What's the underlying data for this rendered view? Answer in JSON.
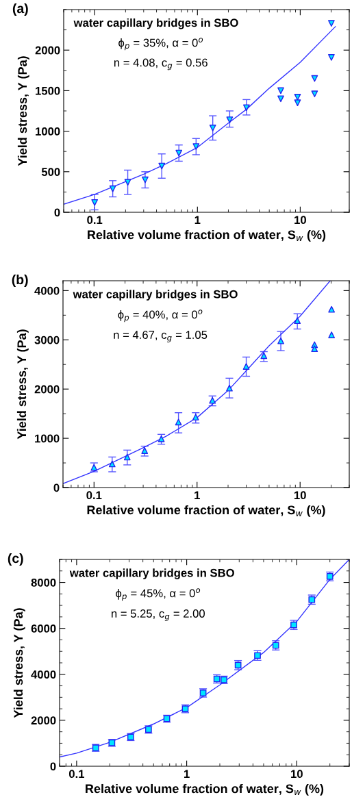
{
  "chart_data": [
    {
      "type": "scatter",
      "title": "(a)",
      "xlabel": "Relative volume fraction of water, S$_{w}$ (%)",
      "ylabel": "Yield stress, Y (Pa)",
      "annotations": [
        "water capillary bridges in SBO",
        "ϕ$_{p}$ = 35%, α = 0$^{o}$",
        "n = 4.08, c$_{g}$ = 0.56"
      ],
      "log": "x",
      "xlim": [
        0.05,
        30
      ],
      "xticks": [
        0.1,
        1,
        10
      ],
      "ylim": [
        0,
        2500
      ],
      "yticks": [
        0,
        500,
        1000,
        1500,
        2000
      ],
      "grid": false,
      "series": [
        {
          "marker": "triangle_down",
          "color": "#00e5ff",
          "x": [
            0.1,
            0.15,
            0.21,
            0.31,
            0.45,
            0.66,
            0.97,
            1.41,
            2.06,
            3.0,
            6.47,
            6.47,
            9.42,
            9.42,
            13.8,
            13.8,
            20.1,
            20.1
          ],
          "values": [
            120,
            290,
            370,
            400,
            570,
            730,
            810,
            1040,
            1140,
            1290,
            1500,
            1400,
            1420,
            1350,
            1650,
            1460,
            2330,
            1910
          ],
          "errors": [
            [
              30,
              220
            ],
            [
              190,
              390
            ],
            [
              220,
              520
            ],
            [
              300,
              500
            ],
            [
              420,
              720
            ],
            [
              630,
              830
            ],
            [
              710,
              910
            ],
            [
              890,
              1190
            ],
            [
              1050,
              1250
            ],
            [
              1200,
              1390
            ],
            null,
            null,
            null,
            null,
            null,
            null,
            null,
            null
          ]
        },
        {
          "type": "line",
          "marker": "none",
          "color": "#3333ff",
          "x": [
            0.05,
            0.1,
            0.3,
            0.5,
            1,
            2,
            3,
            5,
            10,
            22
          ],
          "values": [
            100,
            220,
            470,
            600,
            800,
            1100,
            1270,
            1530,
            1850,
            2290
          ]
        }
      ]
    },
    {
      "type": "scatter",
      "title": "(b)",
      "xlabel": "Relative volume fraction of water, S$_{w}$ (%)",
      "ylabel": "Yield stress, Y (Pa)",
      "annotations": [
        "water capillary bridges in SBO",
        "ϕ$_{p}$ = 40%, α = 0$^{o}$",
        "n = 4.67, c$_{g}$ = 1.05"
      ],
      "log": "x",
      "xlim": [
        0.05,
        30
      ],
      "xticks": [
        0.1,
        1,
        10
      ],
      "ylim": [
        0,
        4200
      ],
      "yticks": [
        0,
        1000,
        2000,
        3000,
        4000
      ],
      "grid": false,
      "series": [
        {
          "marker": "triangle",
          "color": "#00e5ff",
          "x": [
            0.1,
            0.15,
            0.21,
            0.31,
            0.45,
            0.66,
            0.97,
            1.41,
            2.06,
            3.0,
            4.45,
            6.5,
            9.4,
            13.8,
            13.8,
            20.2,
            20.2
          ],
          "values": [
            410,
            480,
            620,
            750,
            990,
            1330,
            1430,
            1770,
            2020,
            2460,
            2680,
            2980,
            3390,
            2900,
            2820,
            3620,
            3100
          ],
          "errors": [
            [
              320,
              500
            ],
            [
              320,
              620
            ],
            [
              460,
              760
            ],
            [
              640,
              840
            ],
            [
              880,
              1080
            ],
            [
              1110,
              1520
            ],
            [
              1310,
              1520
            ],
            [
              1660,
              1860
            ],
            [
              1820,
              2220
            ],
            [
              2260,
              2650
            ],
            [
              2560,
              2760
            ],
            [
              2780,
              3170
            ],
            [
              3220,
              3530
            ],
            null,
            null,
            null,
            null
          ]
        },
        {
          "type": "line",
          "marker": "none",
          "color": "#3333ff",
          "x": [
            0.05,
            0.1,
            0.3,
            0.5,
            1,
            2,
            3,
            5,
            10,
            19.6
          ],
          "values": [
            80,
            330,
            810,
            1040,
            1420,
            1970,
            2370,
            2880,
            3480,
            4200
          ]
        }
      ]
    },
    {
      "type": "scatter",
      "title": "(c)",
      "xlabel": "Relative volume fraction of water, S$_{w}$ (%)",
      "ylabel": "Yield stress, Y (Pa)",
      "annotations": [
        "water capillary bridges in SBO",
        "ϕ$_{p}$ = 45%, α = 0$^{o}$",
        "n = 5.25, c$_{g}$ = 2.00"
      ],
      "log": "x",
      "xlim": [
        0.07,
        30
      ],
      "xticks": [
        0.1,
        1,
        10
      ],
      "ylim": [
        0,
        9000
      ],
      "yticks": [
        0,
        2000,
        4000,
        6000,
        8000
      ],
      "grid": false,
      "series": [
        {
          "marker": "square",
          "color": "#00e5ff",
          "x": [
            0.149,
            0.209,
            0.31,
            0.45,
            0.66,
            0.97,
            1.41,
            1.88,
            2.18,
            2.93,
            4.4,
            6.45,
            9.4,
            13.7,
            20.0
          ],
          "values": [
            800,
            1020,
            1270,
            1600,
            2070,
            2500,
            3190,
            3800,
            3760,
            4400,
            4820,
            5260,
            6150,
            7250,
            8260
          ],
          "errors": [
            150,
            150,
            150,
            160,
            150,
            170,
            180,
            180,
            160,
            200,
            210,
            200,
            200,
            200,
            190
          ]
        },
        {
          "type": "line",
          "marker": "none",
          "color": "#3333ff",
          "x": [
            0.07,
            0.1,
            0.2,
            0.5,
            1,
            2,
            5,
            10,
            20,
            30
          ],
          "values": [
            400,
            570,
            1040,
            1840,
            2550,
            3540,
            4950,
            6300,
            8130,
            9000
          ]
        }
      ]
    }
  ]
}
